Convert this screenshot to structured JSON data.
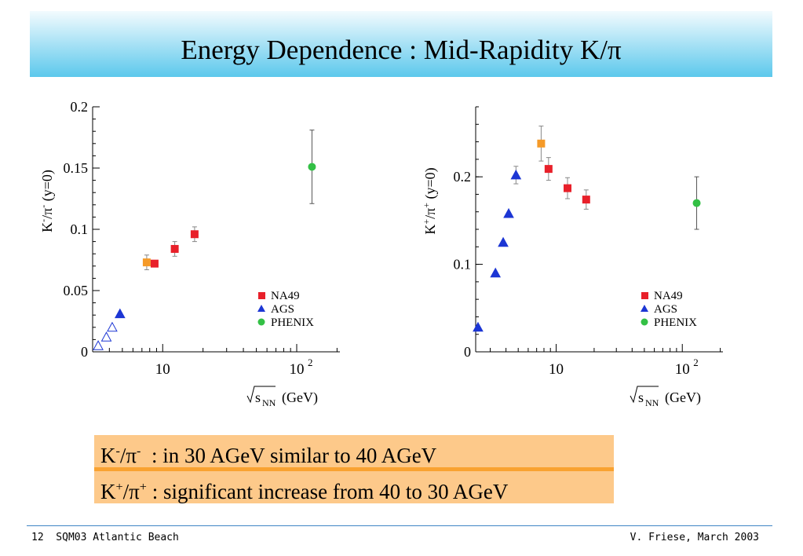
{
  "slide": {
    "title": "Energy Dependence : Mid-Rapidity K/π",
    "notes": [
      {
        "ratio_base": "K",
        "ratio_base_sup": "-",
        "ratio_den": "π",
        "ratio_den_sup": "-",
        "text": "  : in 30 AGeV similar to 40 AGeV"
      },
      {
        "ratio_base": "K",
        "ratio_base_sup": "+",
        "ratio_den": "π",
        "ratio_den_sup": "+",
        "text": " : significant increase from 40 to 30 AGeV"
      }
    ],
    "footer_left": "12  SQM03 Atlantic Beach",
    "footer_right": "V. Friese, March 2003"
  },
  "colors": {
    "NA49": "#e8202a",
    "NA49_highlight": "#f59a28",
    "AGS": "#1c36d4",
    "PHENIX": "#33c045"
  },
  "chart_data": [
    {
      "type": "scatter",
      "xscale": "log",
      "xlim": [
        3,
        210
      ],
      "ylim": [
        0,
        0.2
      ],
      "ylabel_base": "K",
      "ylabel_base_sup": "-",
      "ylabel_den": "π",
      "ylabel_den_sup": "-",
      "ylabel_suffix": " (y=0)",
      "xlabel_main": "s",
      "xlabel_sub": "NN",
      "xlabel_unit": " (GeV)",
      "yticks": [
        0,
        0.05,
        0.1,
        0.15,
        0.2
      ],
      "ytick_labels": [
        "0",
        "0.05",
        "0.1",
        "0.15",
        "0.2"
      ],
      "xtick_labels": [
        {
          "x": 10,
          "label": "10",
          "sup": ""
        },
        {
          "x": 100,
          "label": "10",
          "sup": "2"
        }
      ],
      "legend": [
        "NA49",
        "AGS",
        "PHENIX"
      ],
      "legend_position": "bottom-right",
      "series": [
        {
          "name": "NA49",
          "marker": "square",
          "points": [
            {
              "x": 7.6,
              "y": 0.073,
              "err": 0.006,
              "highlight": true
            },
            {
              "x": 8.7,
              "y": 0.072,
              "err": 0.0
            },
            {
              "x": 12.3,
              "y": 0.084,
              "err": 0.006
            },
            {
              "x": 17.3,
              "y": 0.096,
              "err": 0.006
            }
          ]
        },
        {
          "name": "AGS",
          "marker": "triangle",
          "points": [
            {
              "x": 3.3,
              "y": 0.005,
              "open": true
            },
            {
              "x": 3.8,
              "y": 0.012,
              "open": true
            },
            {
              "x": 4.2,
              "y": 0.02,
              "open": true
            },
            {
              "x": 4.8,
              "y": 0.031,
              "open": false
            }
          ]
        },
        {
          "name": "PHENIX",
          "marker": "circle",
          "points": [
            {
              "x": 130,
              "y": 0.151,
              "err": 0.03
            }
          ]
        }
      ]
    },
    {
      "type": "scatter",
      "xscale": "log",
      "xlim": [
        2.3,
        210
      ],
      "ylim": [
        0,
        0.28
      ],
      "ylabel_base": "K",
      "ylabel_base_sup": "+",
      "ylabel_den": "π",
      "ylabel_den_sup": "+",
      "ylabel_suffix": " (y=0)",
      "xlabel_main": "s",
      "xlabel_sub": "NN",
      "xlabel_unit": " (GeV)",
      "yticks": [
        0,
        0.1,
        0.2
      ],
      "ytick_labels": [
        "0",
        "0.1",
        "0.2"
      ],
      "xtick_labels": [
        {
          "x": 10,
          "label": "10",
          "sup": ""
        },
        {
          "x": 100,
          "label": "10",
          "sup": "2"
        }
      ],
      "legend": [
        "NA49",
        "AGS",
        "PHENIX"
      ],
      "legend_position": "bottom-right",
      "series": [
        {
          "name": "NA49",
          "marker": "square",
          "points": [
            {
              "x": 7.6,
              "y": 0.238,
              "err": 0.02,
              "highlight": true
            },
            {
              "x": 8.7,
              "y": 0.209,
              "err": 0.013
            },
            {
              "x": 12.3,
              "y": 0.187,
              "err": 0.012
            },
            {
              "x": 17.3,
              "y": 0.174,
              "err": 0.011
            }
          ]
        },
        {
          "name": "AGS",
          "marker": "triangle",
          "points": [
            {
              "x": 2.4,
              "y": 0.028,
              "open": false
            },
            {
              "x": 3.3,
              "y": 0.09,
              "open": false
            },
            {
              "x": 3.8,
              "y": 0.125,
              "open": false
            },
            {
              "x": 4.2,
              "y": 0.158,
              "open": false
            },
            {
              "x": 4.8,
              "y": 0.202,
              "open": false,
              "err": 0.01
            }
          ]
        },
        {
          "name": "PHENIX",
          "marker": "circle",
          "points": [
            {
              "x": 130,
              "y": 0.17,
              "err": 0.03
            }
          ]
        }
      ]
    }
  ]
}
